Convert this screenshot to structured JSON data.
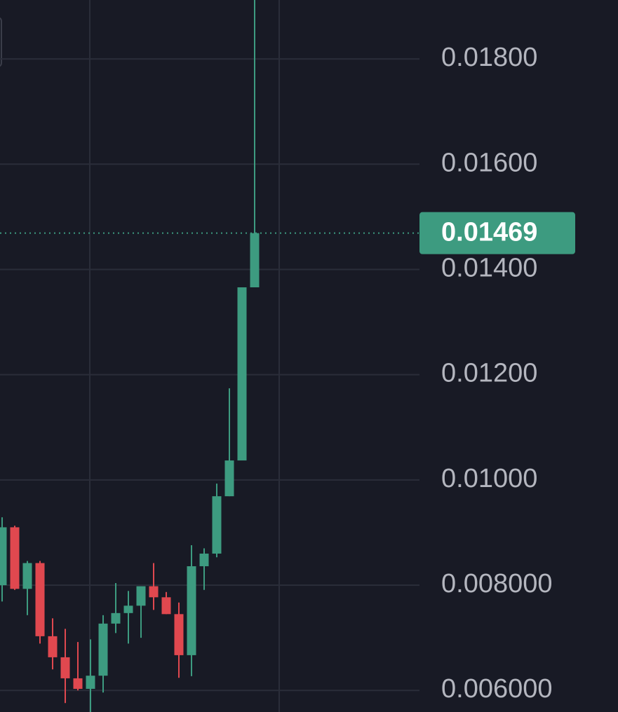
{
  "chart_data": {
    "type": "candlestick",
    "up_color": "#3d9b80",
    "down_color": "#e0484f",
    "ylim": [
      0.00559,
      0.01912
    ],
    "yticks": [
      {
        "value": 0.006,
        "label": "0.006000"
      },
      {
        "value": 0.008,
        "label": "0.008000"
      },
      {
        "value": 0.01,
        "label": "0.01000"
      },
      {
        "value": 0.012,
        "label": "0.01200"
      },
      {
        "value": 0.014,
        "label": "0.01400"
      },
      {
        "value": 0.016,
        "label": "0.01600"
      },
      {
        "value": 0.018,
        "label": "0.01800"
      }
    ],
    "grid": true,
    "last_price": 0.01469,
    "candles": [
      {
        "open": 0.008,
        "high": 0.00929,
        "low": 0.00769,
        "close": 0.0091
      },
      {
        "open": 0.0091,
        "high": 0.00913,
        "low": 0.00791,
        "close": 0.00793
      },
      {
        "open": 0.00793,
        "high": 0.00846,
        "low": 0.00743,
        "close": 0.00842
      },
      {
        "open": 0.00842,
        "high": 0.00846,
        "low": 0.00689,
        "close": 0.00703
      },
      {
        "open": 0.00703,
        "high": 0.00737,
        "low": 0.0064,
        "close": 0.00663
      },
      {
        "open": 0.00663,
        "high": 0.00717,
        "low": 0.00576,
        "close": 0.00623
      },
      {
        "open": 0.00623,
        "high": 0.00692,
        "low": 0.006,
        "close": 0.00603
      },
      {
        "open": 0.00603,
        "high": 0.00697,
        "low": 0.00559,
        "close": 0.00628
      },
      {
        "open": 0.00628,
        "high": 0.00743,
        "low": 0.00596,
        "close": 0.00727
      },
      {
        "open": 0.00727,
        "high": 0.00804,
        "low": 0.00709,
        "close": 0.00747
      },
      {
        "open": 0.00747,
        "high": 0.00789,
        "low": 0.00689,
        "close": 0.00761
      },
      {
        "open": 0.00761,
        "high": 0.00798,
        "low": 0.007,
        "close": 0.00798
      },
      {
        "open": 0.00798,
        "high": 0.00842,
        "low": 0.00753,
        "close": 0.00777
      },
      {
        "open": 0.00777,
        "high": 0.00787,
        "low": 0.00745,
        "close": 0.00745
      },
      {
        "open": 0.00745,
        "high": 0.00767,
        "low": 0.00624,
        "close": 0.00667
      },
      {
        "open": 0.00667,
        "high": 0.00876,
        "low": 0.00627,
        "close": 0.00836
      },
      {
        "open": 0.00836,
        "high": 0.0087,
        "low": 0.00791,
        "close": 0.0086
      },
      {
        "open": 0.0086,
        "high": 0.00993,
        "low": 0.00853,
        "close": 0.00969
      },
      {
        "open": 0.00969,
        "high": 0.01174,
        "low": 0.00969,
        "close": 0.01037
      },
      {
        "open": 0.01037,
        "high": 0.01366,
        "low": 0.01037,
        "close": 0.01366
      },
      {
        "open": 0.01366,
        "high": 0.01912,
        "low": 0.01366,
        "close": 0.01469
      }
    ]
  }
}
